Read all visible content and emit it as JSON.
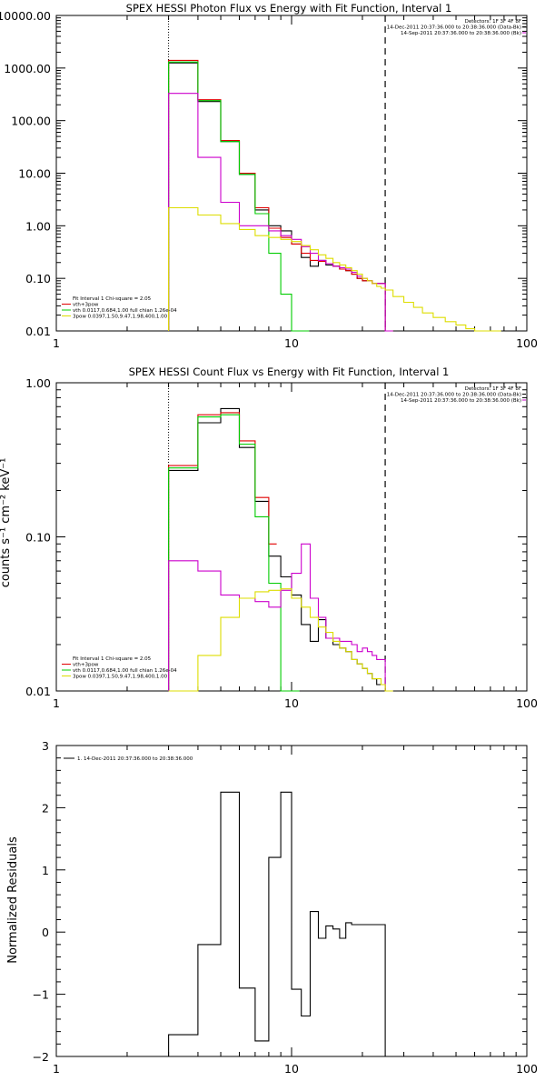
{
  "chart_data": [
    {
      "type": "step-line",
      "title": "SPEX HESSI Photon Flux vs Energy with Fit Function, Interval 1",
      "xlabel": "",
      "ylabel": "",
      "xscale": "log",
      "yscale": "log",
      "xlim": [
        1,
        100
      ],
      "ylim": [
        0.01,
        10000
      ],
      "xticklabels": [
        "1",
        "10",
        "100"
      ],
      "yticklabels": [
        "0.01",
        "0.10",
        "1.00",
        "10.00",
        "100.00",
        "1000.00",
        "10000.00"
      ],
      "header_right": [
        "Detectors: 1F 3F 4F 8F",
        "14-Dec-2011 20:37:36.000 to 20:38:36.000 (Data-Bk)",
        "14-Sep-2011 20:37:36.000 to 20:38:36.000 (Bk)"
      ],
      "fit_legend": [
        "Fit Interval 1    Chi-square = 2.05",
        "vth+3pow",
        "vth 0.0117,0.684,1.00  full chian 1.26e-04",
        "3pow 0.0397,1.50,9.47,1.98,400,1.00"
      ],
      "vertical_lines": [
        3,
        25
      ],
      "series": [
        {
          "color": "#000000",
          "x": [
            3,
            4,
            5,
            6,
            7,
            8,
            9,
            10,
            11,
            12,
            13,
            14,
            15,
            16,
            17,
            18,
            19,
            20,
            21,
            22,
            23,
            24,
            25
          ],
          "values": [
            1250,
            230,
            40,
            9.5,
            2.0,
            1.0,
            0.8,
            0.45,
            0.25,
            0.17,
            0.22,
            0.18,
            0.17,
            0.15,
            0.14,
            0.12,
            0.1,
            0.09,
            0.09,
            0.08,
            0.08,
            0.08,
            0.01
          ]
        },
        {
          "color": "#e00000",
          "x": [
            3,
            4,
            5,
            6,
            7,
            8,
            9,
            10,
            11,
            12,
            13,
            14,
            15,
            16,
            17,
            18,
            19,
            20,
            21,
            22,
            23,
            24,
            25
          ],
          "values": [
            1400,
            250,
            42,
            10,
            2.2,
            0.9,
            0.6,
            0.45,
            0.3,
            0.22,
            0.21,
            0.19,
            0.17,
            0.15,
            0.14,
            0.12,
            0.1,
            0.09,
            0.09,
            0.08,
            0.08,
            0.08,
            0.01
          ]
        },
        {
          "color": "#00cc00",
          "x": [
            3,
            4,
            5,
            6,
            7,
            8,
            9,
            10,
            11
          ],
          "values": [
            1300,
            240,
            40,
            9.5,
            1.7,
            0.3,
            0.05,
            0.01,
            0.01
          ]
        },
        {
          "color": "#cc00cc",
          "x": [
            3,
            4,
            5,
            6,
            7,
            8,
            9,
            10,
            11,
            12,
            13,
            14,
            15,
            16,
            17,
            18,
            19,
            20,
            21,
            22,
            23,
            24,
            25
          ],
          "values": [
            330,
            20,
            2.8,
            1.0,
            1.0,
            0.8,
            0.65,
            0.55,
            0.4,
            0.3,
            0.22,
            0.19,
            0.17,
            0.16,
            0.15,
            0.13,
            0.11,
            0.1,
            0.09,
            0.08,
            0.08,
            0.08,
            0.01
          ]
        },
        {
          "color": "#dddd00",
          "x": [
            3,
            4,
            5,
            6,
            7,
            8,
            9,
            10,
            11,
            12,
            13,
            14,
            15,
            16,
            17,
            18,
            19,
            20,
            21,
            22,
            23,
            24,
            25,
            27,
            30,
            33,
            36,
            40,
            45,
            50,
            55,
            60,
            66,
            72
          ],
          "values": [
            2.2,
            1.6,
            1.1,
            0.85,
            0.65,
            0.6,
            0.55,
            0.5,
            0.42,
            0.35,
            0.28,
            0.24,
            0.2,
            0.18,
            0.16,
            0.14,
            0.12,
            0.1,
            0.09,
            0.08,
            0.07,
            0.065,
            0.06,
            0.045,
            0.035,
            0.028,
            0.022,
            0.018,
            0.015,
            0.013,
            0.011,
            0.01,
            0.01,
            0.01
          ]
        }
      ]
    },
    {
      "type": "step-line",
      "title": "SPEX HESSI Count Flux vs Energy with Fit Function, Interval 1",
      "xlabel": "",
      "ylabel": "counts s⁻¹ cm⁻² keV⁻¹",
      "xscale": "log",
      "yscale": "log",
      "xlim": [
        1,
        100
      ],
      "ylim": [
        0.01,
        1.0
      ],
      "xticklabels": [
        "1",
        "10",
        "100"
      ],
      "yticklabels": [
        "0.01",
        "0.10",
        "1.00"
      ],
      "header_right": [
        "Detectors: 1F 3F 4F 8F",
        "14-Dec-2011 20:37:36.000 to 20:38:36.000 (Data-Bk)",
        "14-Sep-2011 20:37:36.000 to 20:38:36.000 (Bk)"
      ],
      "fit_legend": [
        "Fit Interval 1    Chi-square = 2.05",
        "vth+3pow",
        "vth 0.0117,0.684,1.00  full chian 1.26e-04",
        "3pow 0.0397,1.50,9.47,1.98,400,1.00"
      ],
      "vertical_lines": [
        3,
        25
      ],
      "series": [
        {
          "color": "#000000",
          "x": [
            3,
            4,
            5,
            6,
            7,
            8,
            9,
            10,
            11,
            12,
            13,
            14,
            15,
            16,
            17,
            18,
            19,
            20,
            21,
            22,
            23,
            24,
            25
          ],
          "values": [
            0.27,
            0.55,
            0.68,
            0.38,
            0.17,
            0.075,
            0.055,
            0.042,
            0.027,
            0.021,
            0.029,
            0.022,
            0.02,
            0.019,
            0.018,
            0.016,
            0.015,
            0.014,
            0.013,
            0.012,
            0.011,
            0.011,
            0.01
          ]
        },
        {
          "color": "#e00000",
          "x": [
            3,
            4,
            5,
            6,
            7,
            8
          ],
          "values": [
            0.29,
            0.62,
            0.64,
            0.42,
            0.18,
            0.09
          ]
        },
        {
          "color": "#00cc00",
          "x": [
            3,
            4,
            5,
            6,
            7,
            8,
            9,
            10
          ],
          "values": [
            0.28,
            0.6,
            0.62,
            0.4,
            0.135,
            0.05,
            0.01,
            0.01
          ]
        },
        {
          "color": "#cc00cc",
          "x": [
            3,
            4,
            5,
            6,
            7,
            8,
            9,
            10,
            11,
            12,
            13,
            14,
            15,
            16,
            17,
            18,
            19,
            20,
            21,
            22,
            23,
            24,
            25
          ],
          "values": [
            0.07,
            0.06,
            0.042,
            0.04,
            0.038,
            0.035,
            0.045,
            0.058,
            0.09,
            0.04,
            0.03,
            0.022,
            0.022,
            0.021,
            0.021,
            0.02,
            0.018,
            0.019,
            0.018,
            0.017,
            0.016,
            0.016,
            0.01
          ]
        },
        {
          "color": "#dddd00",
          "x": [
            3,
            4,
            5,
            6,
            7,
            8,
            9,
            10,
            11,
            12,
            13,
            14,
            15,
            16,
            17,
            18,
            19,
            20,
            21,
            22,
            23,
            24,
            25
          ],
          "values": [
            0.01,
            0.017,
            0.03,
            0.04,
            0.044,
            0.045,
            0.046,
            0.04,
            0.035,
            0.03,
            0.026,
            0.024,
            0.021,
            0.019,
            0.018,
            0.016,
            0.015,
            0.014,
            0.013,
            0.012,
            0.012,
            0.011,
            0.01
          ]
        }
      ]
    },
    {
      "type": "step-line",
      "title": "",
      "xlabel": "",
      "ylabel": "Normalized Residuals",
      "xscale": "log",
      "yscale": "linear",
      "xlim": [
        1,
        100
      ],
      "ylim": [
        -2,
        3
      ],
      "xticklabels": [
        "1",
        "10",
        "100"
      ],
      "yticklabels": [
        "-2",
        "-1",
        "0",
        "1",
        "2",
        "3"
      ],
      "legend": "1. 14-Dec-2011 20:37:36.000 to 20:38:36.000",
      "series": [
        {
          "color": "#000000",
          "x": [
            3,
            4,
            5,
            6,
            7,
            8,
            9,
            10,
            11,
            12,
            13,
            14,
            15,
            16,
            17,
            18,
            19,
            20,
            21,
            22,
            23,
            24,
            25
          ],
          "values": [
            -1.65,
            -0.2,
            2.25,
            -0.9,
            -1.75,
            1.2,
            2.25,
            -0.92,
            -1.35,
            0.33,
            -0.1,
            0.1,
            0.05,
            -0.1,
            0.15,
            0.12,
            0.12,
            0.12,
            0.12,
            0.12,
            0.12,
            0.12,
            -2.0
          ]
        }
      ]
    }
  ]
}
